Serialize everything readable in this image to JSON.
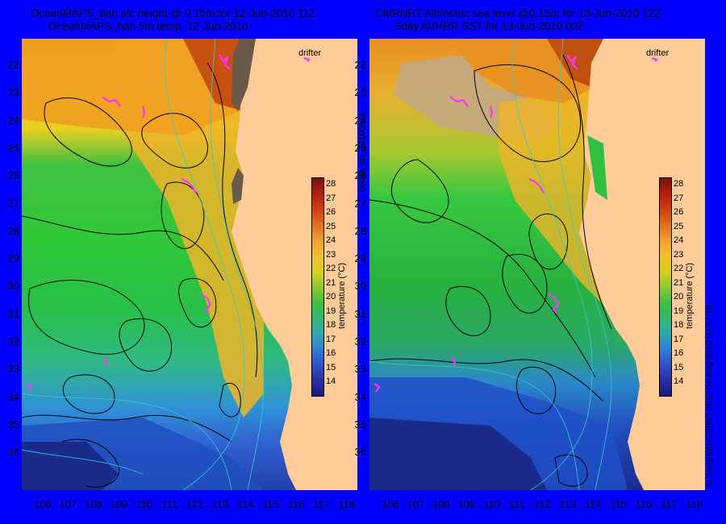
{
  "left_panel": {
    "title_line1": "OceanMAPS_ban sfc height @ 0.15m for 12-Jun-2010 11Z",
    "title_line2": "OceanMAPS_ban 5m temp. 12-Jun-2010",
    "drifter_label": "drifter"
  },
  "right_panel": {
    "title_line1": "CMRNRT Altimetric sea level  @0.15m  for 13-Jun-2010 12Z",
    "title_line2": "3day AVHRR SST for 13-Jun-2010 00Z",
    "drifter_label": "drifter"
  },
  "latitudes": [
    "22",
    "23",
    "24",
    "25",
    "26",
    "27",
    "28",
    "29",
    "30",
    "31",
    "32",
    "33",
    "34",
    "35",
    "36"
  ],
  "longitudes": [
    "106",
    "107",
    "108",
    "109",
    "110",
    "111",
    "112",
    "113",
    "114",
    "115",
    "116",
    "117",
    "118"
  ],
  "colorbar": {
    "ticks": [
      "28",
      "27",
      "26",
      "25",
      "24",
      "23",
      "22",
      "21",
      "20",
      "19",
      "18",
      "17",
      "16",
      "15",
      "14"
    ],
    "label": "temperature (°C)"
  },
  "colors": {
    "background": "#0000ff",
    "land": "#ffcc99",
    "drifter": "#ff33ff",
    "contour": "#000000",
    "bathymetry": "#33cccc"
  },
  "side_text": {
    "run_id": "bodas_an_20100612",
    "copyright": "© Copyright CSIRO 2010     04-Aug-2010 03:37:16"
  }
}
